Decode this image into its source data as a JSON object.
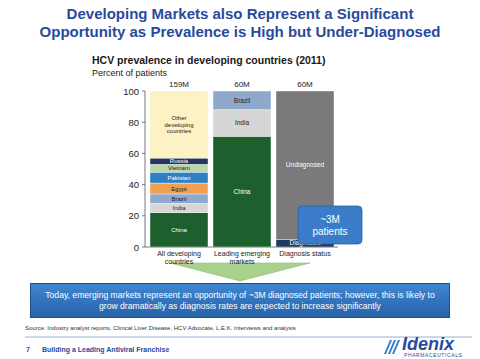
{
  "header": {
    "title": [
      "Developing Markets also Represent a Significant",
      "Opportunity as Prevalence is High but Under-Diagnosed"
    ]
  },
  "chart_data": {
    "type": "bar",
    "stacked": true,
    "grid": false,
    "title": "HCV prevalence in developing countries (2011)",
    "subtitle": "Percent of patients",
    "categories": [
      "All developing countries",
      "Leading emerging markets",
      "Diagnosis status"
    ],
    "bar_totals": [
      "159M",
      "60M",
      "60M"
    ],
    "series": [
      {
        "name": "China",
        "color": "#1e5f2e",
        "values": [
          22,
          71,
          null
        ]
      },
      {
        "name": "India",
        "color": "#d6d6d6",
        "values": [
          6,
          17,
          null
        ]
      },
      {
        "name": "Brazil",
        "color": "#8fa9cc",
        "values": [
          6,
          12,
          null
        ]
      },
      {
        "name": "Egypt",
        "color": "#f0a050",
        "values": [
          7,
          null,
          null
        ]
      },
      {
        "name": "Pakistan",
        "color": "#2f7fc4",
        "values": [
          7,
          null,
          null
        ]
      },
      {
        "name": "Vietnam",
        "color": "#b9d7a8",
        "values": [
          5,
          null,
          null
        ]
      },
      {
        "name": "Russia",
        "color": "#26365c",
        "values": [
          4,
          null,
          null
        ]
      },
      {
        "name": "Other developing countries",
        "color": "#fdf2c4",
        "values": [
          43,
          null,
          null
        ]
      },
      {
        "name": "Diagnosed",
        "color": "#1f3a5f",
        "values": [
          null,
          null,
          5
        ]
      },
      {
        "name": "Undiagnosed",
        "color": "#7a7a7a",
        "values": [
          null,
          null,
          95
        ]
      }
    ],
    "ylim": [
      0,
      100
    ],
    "yticks": [
      0,
      20,
      40,
      60,
      80,
      100
    ],
    "annotations": [
      "~3M patients"
    ]
  },
  "callout": "Today, emerging markets represent an opportunity of ~3M diagnosed patients; however, this is likely to grow dramatically as diagnosis rates are expected to increase significantly",
  "footer": {
    "source": "Source: Industry analyst reports, Clinical Liver Disease, HCV Advocate, L.E.K. interviews and analysis",
    "page": "7",
    "tagline": "Building a Leading Antiviral Franchise",
    "logo": "Idenix",
    "logo_sub": "PHARMACEUTICALS"
  }
}
